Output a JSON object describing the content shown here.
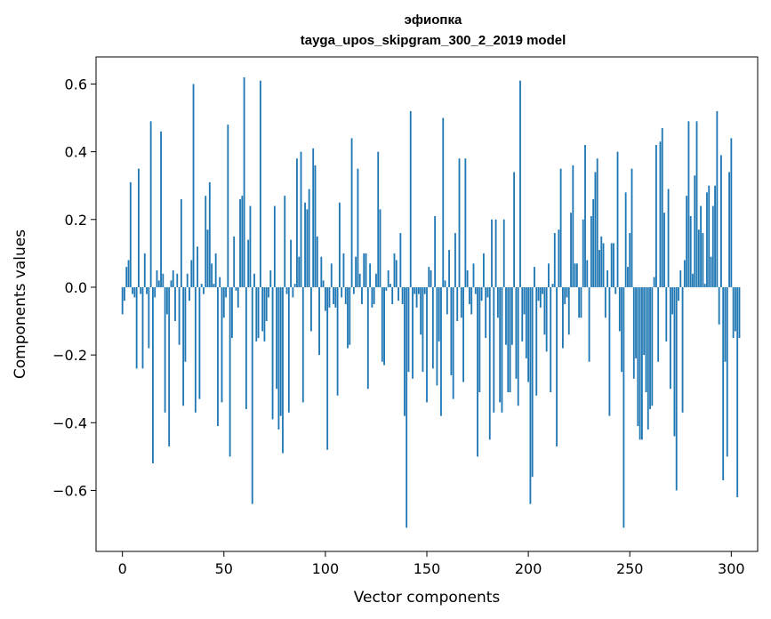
{
  "chart_data": {
    "type": "bar",
    "title": "эфиопка",
    "subtitle": "tayga_upos_skipgram_300_2_2019 model",
    "xlabel": "Vector components",
    "ylabel": "Components values",
    "xlim": [
      -13,
      313
    ],
    "ylim": [
      -0.78,
      0.68
    ],
    "xticks": [
      0,
      50,
      100,
      150,
      200,
      250,
      300
    ],
    "yticks": [
      -0.6,
      -0.4,
      -0.2,
      0.0,
      0.2,
      0.4,
      0.6
    ],
    "ytick_labels": [
      "−0.6",
      "−0.4",
      "−0.2",
      "0.0",
      "0.2",
      "0.4",
      "0.6"
    ],
    "bar_color": "#1f77b4",
    "values": [
      -0.08,
      -0.04,
      0.06,
      0.08,
      0.31,
      -0.02,
      -0.03,
      -0.24,
      0.35,
      -0.02,
      -0.24,
      0.1,
      -0.02,
      -0.18,
      0.49,
      -0.52,
      -0.03,
      0.05,
      0.02,
      0.46,
      0.04,
      -0.37,
      -0.08,
      -0.47,
      0.02,
      0.05,
      -0.1,
      0.04,
      -0.17,
      0.26,
      -0.35,
      -0.22,
      0.04,
      -0.04,
      0.08,
      0.6,
      -0.37,
      0.12,
      -0.33,
      0.01,
      -0.02,
      0.27,
      0.17,
      0.31,
      0.07,
      0.01,
      0.1,
      -0.41,
      0.03,
      -0.34,
      -0.09,
      -0.03,
      0.48,
      -0.5,
      -0.15,
      0.15,
      -0.01,
      -0.06,
      0.26,
      0.27,
      0.62,
      -0.36,
      0.14,
      0.24,
      -0.64,
      0.04,
      -0.16,
      -0.15,
      0.61,
      -0.13,
      -0.16,
      -0.1,
      -0.03,
      0.05,
      -0.39,
      0.24,
      -0.3,
      -0.42,
      -0.38,
      -0.49,
      0.27,
      -0.02,
      -0.37,
      0.14,
      -0.03,
      0.01,
      0.38,
      0.09,
      0.4,
      -0.34,
      0.25,
      0.23,
      0.29,
      -0.13,
      0.41,
      0.36,
      0.15,
      -0.2,
      0.09,
      0.02,
      -0.07,
      -0.48,
      -0.06,
      0.07,
      -0.05,
      -0.06,
      -0.32,
      0.25,
      -0.03,
      0.1,
      -0.05,
      -0.18,
      -0.17,
      0.44,
      -0.02,
      0.09,
      0.35,
      0.04,
      -0.05,
      0.1,
      0.1,
      -0.3,
      0.07,
      -0.06,
      -0.05,
      0.04,
      0.4,
      0.23,
      -0.22,
      -0.23,
      -0.01,
      0.05,
      0.01,
      -0.05,
      0.1,
      0.08,
      -0.04,
      0.16,
      -0.05,
      -0.38,
      -0.71,
      -0.25,
      0.52,
      -0.27,
      -0.02,
      -0.06,
      -0.02,
      -0.14,
      -0.25,
      -0.02,
      -0.34,
      0.06,
      0.05,
      -0.24,
      0.21,
      -0.29,
      -0.16,
      -0.38,
      0.5,
      0.02,
      -0.08,
      0.11,
      -0.26,
      -0.33,
      0.16,
      -0.1,
      0.38,
      -0.09,
      -0.28,
      0.38,
      0.05,
      -0.05,
      -0.08,
      0.07,
      -0.02,
      -0.5,
      -0.31,
      -0.04,
      0.1,
      -0.15,
      -0.03,
      -0.45,
      0.2,
      -0.37,
      0.2,
      -0.09,
      -0.34,
      -0.37,
      0.2,
      -0.17,
      -0.31,
      -0.31,
      -0.17,
      0.34,
      -0.27,
      -0.35,
      0.61,
      -0.16,
      -0.08,
      -0.21,
      -0.28,
      -0.64,
      -0.56,
      0.06,
      -0.32,
      -0.04,
      -0.06,
      -0.02,
      -0.14,
      -0.19,
      0.07,
      -0.31,
      0.01,
      0.16,
      -0.47,
      0.17,
      0.35,
      -0.18,
      -0.05,
      -0.03,
      -0.14,
      0.22,
      0.36,
      0.07,
      0.07,
      -0.09,
      -0.09,
      0.2,
      0.42,
      0.08,
      -0.22,
      0.21,
      0.26,
      0.34,
      0.38,
      0.11,
      0.15,
      0.13,
      -0.09,
      0.05,
      -0.38,
      0.13,
      0.13,
      -0.02,
      0.4,
      -0.13,
      -0.25,
      -0.71,
      0.28,
      0.06,
      0.16,
      0.35,
      -0.27,
      -0.21,
      -0.41,
      -0.45,
      -0.45,
      -0.2,
      -0.31,
      -0.42,
      -0.36,
      -0.35,
      0.03,
      0.42,
      -0.22,
      0.43,
      0.47,
      0.22,
      -0.16,
      0.29,
      -0.3,
      -0.08,
      -0.44,
      -0.6,
      -0.04,
      0.05,
      -0.37,
      0.08,
      0.27,
      0.49,
      0.21,
      0.04,
      0.33,
      0.49,
      0.17,
      0.24,
      0.16,
      0.01,
      0.28,
      0.3,
      0.09,
      0.24,
      0.3,
      0.52,
      -0.11,
      0.39,
      -0.57,
      -0.22,
      -0.5,
      0.34,
      0.44,
      -0.15,
      -0.13,
      -0.62,
      -0.15
    ]
  }
}
